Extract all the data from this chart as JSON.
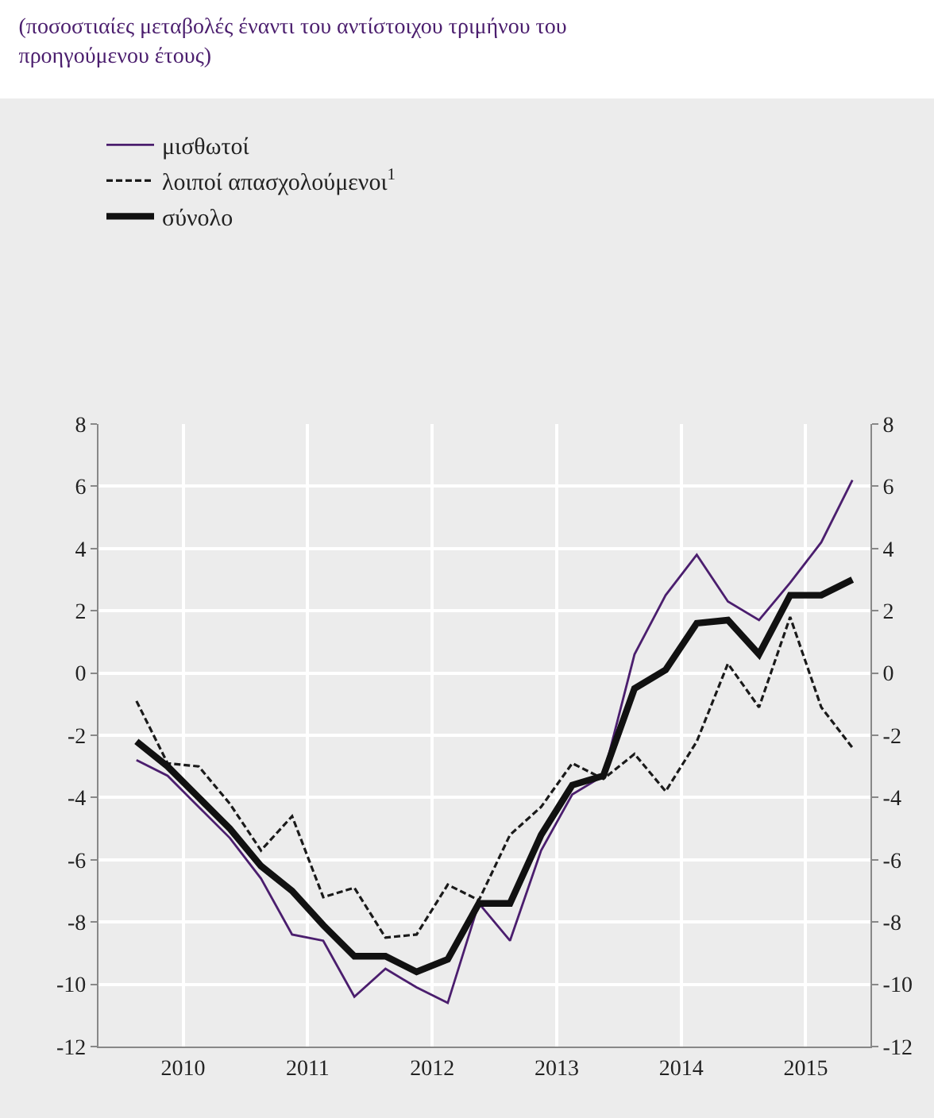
{
  "chart_data": {
    "type": "line",
    "title": "(ποσοστιαίες μεταβολές έναντι του αντίστοιχου τριμήνου του προηγούμενου έτους)",
    "x": [
      2010.125,
      2010.375,
      2010.625,
      2010.875,
      2011.125,
      2011.375,
      2011.625,
      2011.875,
      2012.125,
      2012.375,
      2012.625,
      2012.875,
      2013.125,
      2013.375,
      2013.625,
      2013.875,
      2014.125,
      2014.375,
      2014.625,
      2014.875,
      2015.125,
      2015.375,
      2015.625,
      2015.875
    ],
    "series": [
      {
        "name": "μισθωτοί",
        "color": "#4b1e6e",
        "line_style": "solid",
        "values": [
          -2.8,
          -3.3,
          -4.3,
          -5.3,
          -6.6,
          -8.4,
          -8.6,
          -10.4,
          -9.5,
          -10.1,
          -10.6,
          -7.4,
          -8.6,
          -5.7,
          -3.9,
          -3.3,
          0.6,
          2.5,
          3.8,
          2.3,
          1.7,
          2.9,
          4.2,
          6.2
        ]
      },
      {
        "name": "λοιποί απασχολούμενοι$^{1}$",
        "color": "#1a1a1a",
        "line_style": "dashed",
        "values": [
          -0.9,
          -2.9,
          -3.0,
          -4.2,
          -5.7,
          -4.6,
          -7.2,
          -6.9,
          -8.5,
          -8.4,
          -6.8,
          -7.3,
          -5.2,
          -4.3,
          -2.9,
          -3.4,
          -2.6,
          -3.8,
          -2.2,
          0.3,
          -1.1,
          1.8,
          -1.1,
          -2.4
        ]
      },
      {
        "name": "σύνολο",
        "color": "#111111",
        "line_style": "solid",
        "values": [
          -2.2,
          -3.0,
          -4.0,
          -5.0,
          -6.2,
          -7.0,
          -8.1,
          -9.1,
          -9.1,
          -9.6,
          -9.2,
          -7.4,
          -7.4,
          -5.2,
          -3.6,
          -3.3,
          -0.5,
          0.1,
          1.6,
          1.7,
          0.6,
          2.5,
          2.5,
          3.0
        ]
      }
    ],
    "xlim": [
      2009.82,
      2016.02
    ],
    "xticks": [
      {
        "value": 2010.5,
        "label": "2010"
      },
      {
        "value": 2011.5,
        "label": "2011"
      },
      {
        "value": 2012.5,
        "label": "2012"
      },
      {
        "value": 2013.5,
        "label": "2013"
      },
      {
        "value": 2014.5,
        "label": "2014"
      },
      {
        "value": 2015.5,
        "label": "2015"
      }
    ],
    "ylim": [
      -12,
      8
    ],
    "yticks": [
      -12,
      -10,
      -8,
      -6,
      -4,
      -2,
      0,
      2,
      4,
      6,
      8
    ],
    "y2lim": [
      -12,
      8
    ],
    "y2ticks": [
      -12,
      -10,
      -8,
      -6,
      -4,
      -2,
      0,
      2,
      4,
      6,
      8
    ],
    "grid": true,
    "legend": "top left",
    "marker": "none"
  }
}
